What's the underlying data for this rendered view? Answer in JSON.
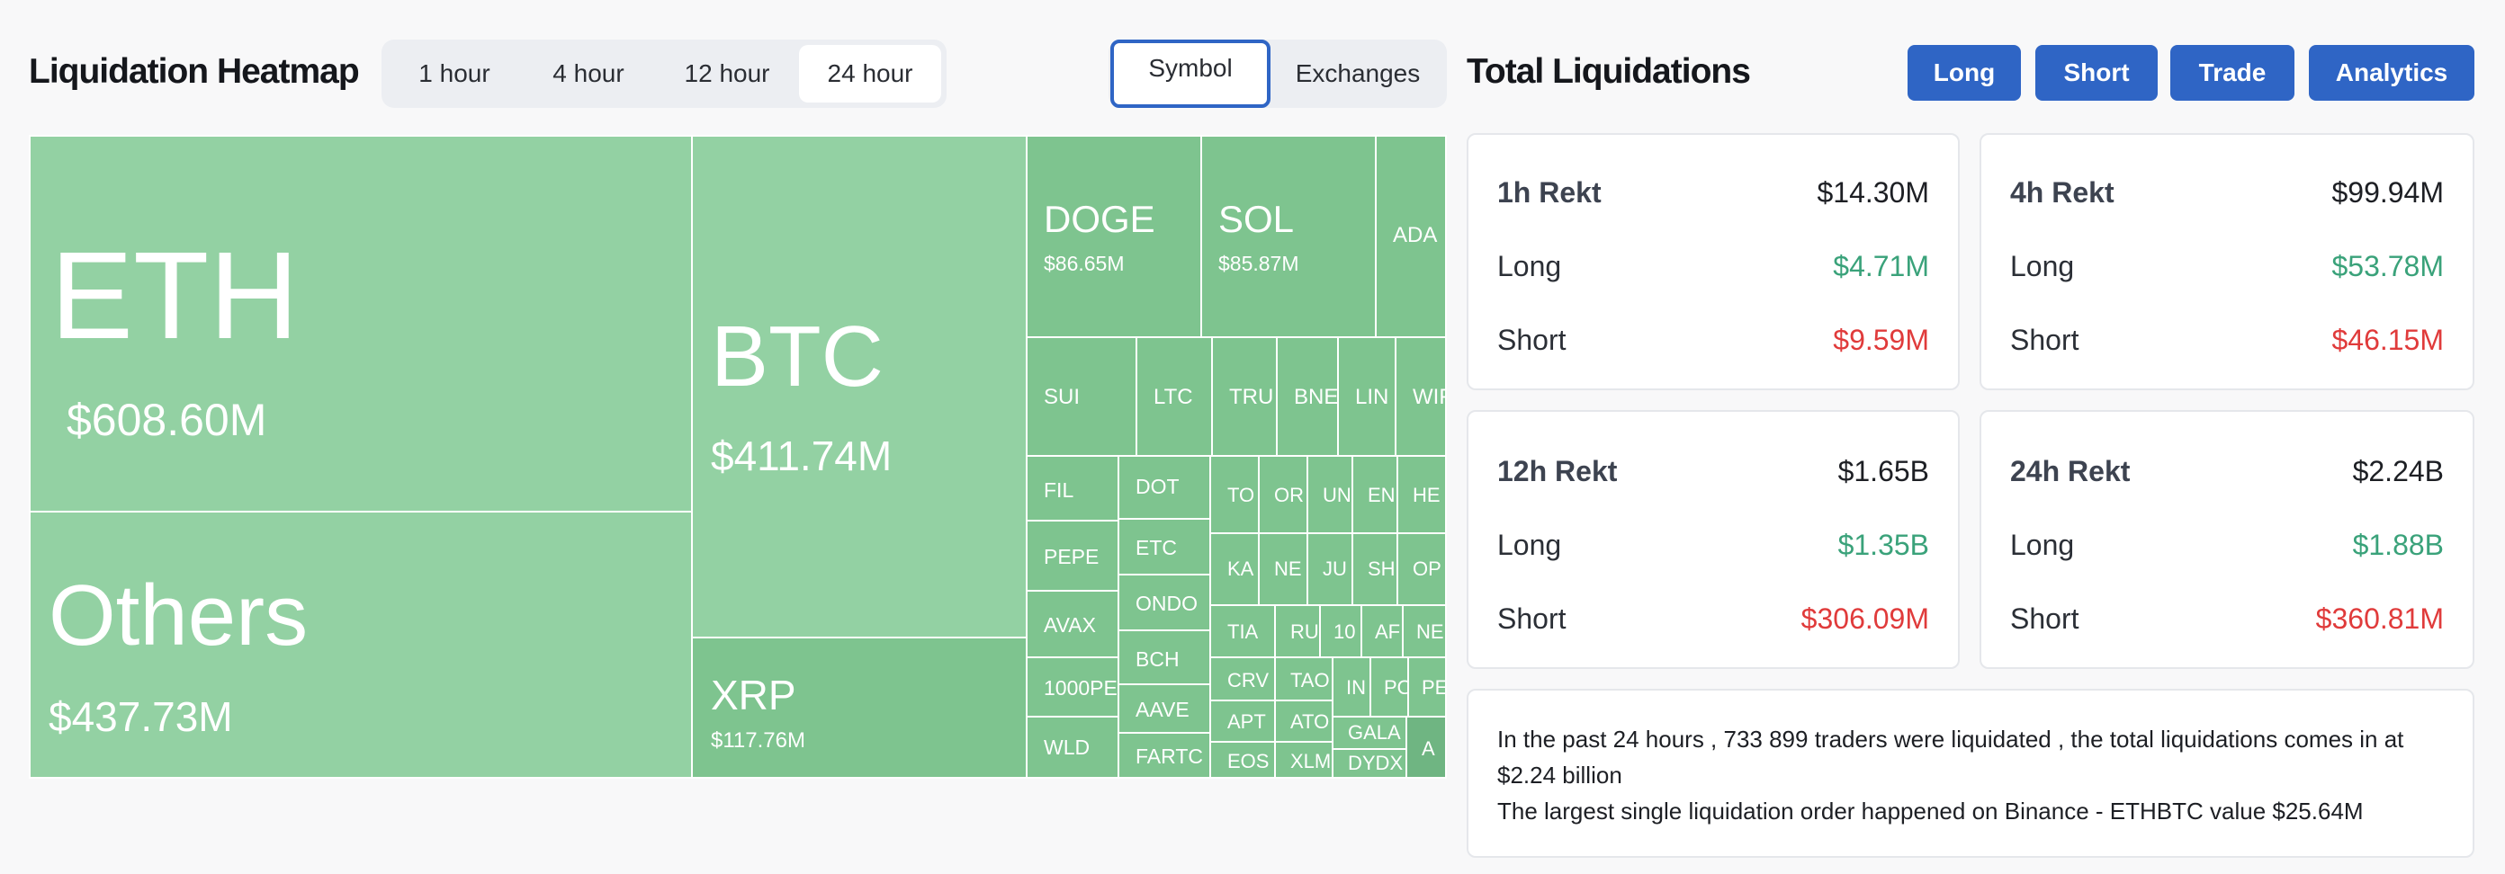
{
  "heatmap": {
    "title": "Liquidation Heatmap",
    "time_tabs": [
      "1 hour",
      "4 hour",
      "12 hour",
      "24 hour"
    ],
    "active_time_tab": "24 hour",
    "view_tabs": [
      "Symbol",
      "Exchanges"
    ],
    "active_view_tab": "Symbol",
    "tiles": [
      {
        "symbol": "ETH",
        "value": "$608.60M",
        "liquidations_musd": 608.6
      },
      {
        "symbol": "Others",
        "value": "$437.73M",
        "liquidations_musd": 437.73
      },
      {
        "symbol": "BTC",
        "value": "$411.74M",
        "liquidations_musd": 411.74
      },
      {
        "symbol": "XRP",
        "value": "$117.76M",
        "liquidations_musd": 117.76
      },
      {
        "symbol": "DOGE",
        "value": "$86.65M",
        "liquidations_musd": 86.65
      },
      {
        "symbol": "SOL",
        "value": "$85.87M",
        "liquidations_musd": 85.87
      },
      {
        "symbol": "ADA",
        "value": ""
      },
      {
        "symbol": "SUI",
        "value": ""
      },
      {
        "symbol": "LTC",
        "value": ""
      },
      {
        "symbol": "TRU",
        "value": ""
      },
      {
        "symbol": "BNE",
        "value": ""
      },
      {
        "symbol": "LIN",
        "value": ""
      },
      {
        "symbol": "WIF",
        "value": ""
      },
      {
        "symbol": "FIL",
        "value": ""
      },
      {
        "symbol": "DOT",
        "value": ""
      },
      {
        "symbol": "PEPE",
        "value": ""
      },
      {
        "symbol": "ETC",
        "value": ""
      },
      {
        "symbol": "AVAX",
        "value": ""
      },
      {
        "symbol": "ONDO",
        "value": ""
      },
      {
        "symbol": "1000PE",
        "value": ""
      },
      {
        "symbol": "BCH",
        "value": ""
      },
      {
        "symbol": "WLD",
        "value": ""
      },
      {
        "symbol": "AAVE",
        "value": ""
      },
      {
        "symbol": "FARTC",
        "value": ""
      },
      {
        "symbol": "TO",
        "value": ""
      },
      {
        "symbol": "OR",
        "value": ""
      },
      {
        "symbol": "UN",
        "value": ""
      },
      {
        "symbol": "EN",
        "value": ""
      },
      {
        "symbol": "HE",
        "value": ""
      },
      {
        "symbol": "KA",
        "value": ""
      },
      {
        "symbol": "NE",
        "value": ""
      },
      {
        "symbol": "JU",
        "value": ""
      },
      {
        "symbol": "SH",
        "value": ""
      },
      {
        "symbol": "OP",
        "value": ""
      },
      {
        "symbol": "TIA",
        "value": ""
      },
      {
        "symbol": "RU",
        "value": ""
      },
      {
        "symbol": "10",
        "value": ""
      },
      {
        "symbol": "AF",
        "value": ""
      },
      {
        "symbol": "NE",
        "value": ""
      },
      {
        "symbol": "CRV",
        "value": ""
      },
      {
        "symbol": "TAO",
        "value": ""
      },
      {
        "symbol": "IN",
        "value": ""
      },
      {
        "symbol": "PO",
        "value": ""
      },
      {
        "symbol": "PE",
        "value": ""
      },
      {
        "symbol": "APT",
        "value": ""
      },
      {
        "symbol": "ATO",
        "value": ""
      },
      {
        "symbol": "GALA",
        "value": ""
      },
      {
        "symbol": "EOS",
        "value": ""
      },
      {
        "symbol": "XLM",
        "value": ""
      },
      {
        "symbol": "DYDX",
        "value": ""
      },
      {
        "symbol": "A",
        "value": ""
      }
    ]
  },
  "totals": {
    "title": "Total Liquidations",
    "buttons": [
      "Long",
      "Short",
      "Trade",
      "Analytics"
    ],
    "cards": [
      {
        "label": "1h Rekt",
        "total": "$14.30M",
        "long_label": "Long",
        "long": "$4.71M",
        "short_label": "Short",
        "short": "$9.59M"
      },
      {
        "label": "4h Rekt",
        "total": "$99.94M",
        "long_label": "Long",
        "long": "$53.78M",
        "short_label": "Short",
        "short": "$46.15M"
      },
      {
        "label": "12h Rekt",
        "total": "$1.65B",
        "long_label": "Long",
        "long": "$1.35B",
        "short_label": "Short",
        "short": "$306.09M"
      },
      {
        "label": "24h Rekt",
        "total": "$2.24B",
        "long_label": "Long",
        "long": "$1.88B",
        "short_label": "Short",
        "short": "$360.81M"
      }
    ],
    "summary_line1": "In the past 24 hours , 733 899 traders were liquidated , the total liquidations comes in at $2.24 billion",
    "summary_line2": "The largest single liquidation order happened on Binance - ETHBTC value $25.64M"
  },
  "colors": {
    "tile_light": "#93d1a3",
    "tile_mid": "#7ec48f",
    "tile_dark": "#6fb582",
    "accent": "#2f65c5",
    "long": "#3aa27a",
    "short": "#e03b3b"
  }
}
